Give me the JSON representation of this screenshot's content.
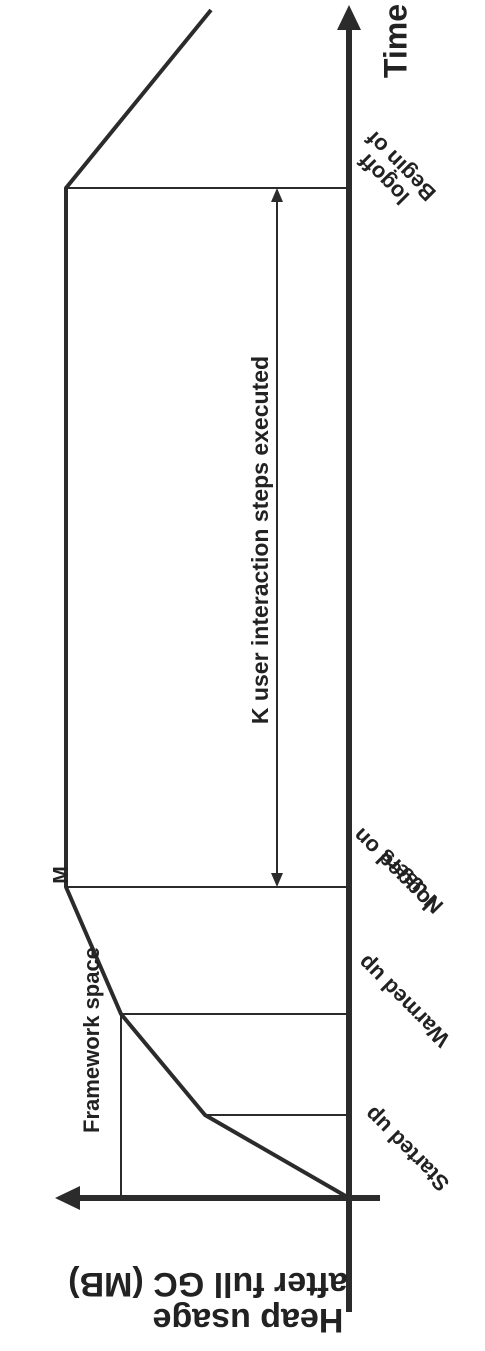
{
  "axes": {
    "y_axis_label_line1": "Heap usage",
    "y_axis_label_line2": "after full GC (MB)",
    "time_axis_label": "Time"
  },
  "annotations": {
    "framework_space": "Framework space",
    "k_steps": "K user interaction steps executed",
    "m_marker": "M"
  },
  "milestones": {
    "started_up": "Started up",
    "warmed_up": "Warmed up",
    "n_users_line1": "N users",
    "n_users_line2": "logged on",
    "begin_logoff_line1": "Begin of",
    "begin_logoff_line2": "logoff"
  },
  "colors": {
    "line": "#2b2b2b",
    "text": "#222222",
    "background": "#ffffff"
  }
}
